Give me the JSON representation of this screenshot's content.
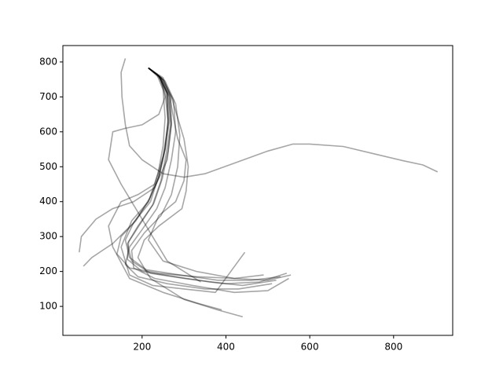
{
  "chart_data": {
    "type": "line",
    "xlim": [
      11,
      941
    ],
    "ylim": [
      17,
      847
    ],
    "xticks": [
      200,
      400,
      600,
      800
    ],
    "yticks": [
      100,
      200,
      300,
      400,
      500,
      600,
      700,
      800
    ],
    "grid": false,
    "alpha": 0.35,
    "series": [
      {
        "color": "#000000",
        "x": [
          215,
          245,
          265,
          268,
          258,
          245,
          225,
          190,
          165,
          175,
          220,
          300,
          400,
          480,
          545
        ],
        "values": [
          783,
          755,
          700,
          620,
          540,
          460,
          390,
          330,
          280,
          230,
          195,
          180,
          165,
          170,
          195
        ]
      },
      {
        "color": "#000000",
        "x": [
          215,
          240,
          255,
          262,
          255,
          240,
          215,
          180,
          160,
          170,
          210,
          290,
          380,
          460,
          530
        ],
        "values": [
          783,
          760,
          710,
          630,
          550,
          470,
          400,
          340,
          290,
          240,
          205,
          190,
          175,
          175,
          185
        ]
      },
      {
        "color": "#000000",
        "x": [
          215,
          250,
          275,
          280,
          270,
          255,
          235,
          200,
          170,
          160,
          190,
          260,
          350,
          430,
          510
        ],
        "values": [
          783,
          750,
          690,
          600,
          520,
          440,
          380,
          320,
          270,
          220,
          185,
          165,
          150,
          150,
          165
        ]
      },
      {
        "color": "#000000",
        "x": [
          215,
          235,
          250,
          255,
          250,
          238,
          218,
          185,
          150,
          140,
          170,
          240,
          330,
          420,
          490
        ],
        "values": [
          783,
          765,
          720,
          640,
          560,
          480,
          410,
          345,
          300,
          250,
          210,
          195,
          185,
          180,
          190
        ]
      },
      {
        "color": "#000000",
        "x": [
          215,
          255,
          280,
          290,
          285,
          270,
          245,
          205,
          175,
          180,
          230,
          320,
          420,
          500,
          550
        ],
        "values": [
          783,
          745,
          680,
          590,
          500,
          420,
          360,
          310,
          260,
          210,
          180,
          160,
          140,
          145,
          180
        ]
      },
      {
        "color": "#000000",
        "x": [
          215,
          242,
          262,
          270,
          262,
          248,
          228,
          195,
          168,
          165,
          200,
          280,
          360,
          440,
          520
        ],
        "values": [
          783,
          758,
          705,
          625,
          545,
          465,
          395,
          335,
          285,
          235,
          200,
          185,
          170,
          160,
          175
        ]
      },
      {
        "color": "#000000",
        "x": [
          215,
          248,
          270,
          285,
          300,
          310,
          305,
          295,
          240,
          205,
          190,
          220,
          300,
          380,
          440
        ],
        "values": [
          783,
          752,
          700,
          640,
          580,
          500,
          430,
          380,
          330,
          290,
          240,
          180,
          120,
          90,
          70
        ]
      },
      {
        "color": "#000000",
        "x": [
          215,
          240,
          260,
          262,
          250,
          230,
          190,
          150,
          120,
          130,
          170,
          250,
          330,
          390
        ],
        "values": [
          783,
          760,
          710,
          620,
          530,
          450,
          420,
          400,
          330,
          270,
          180,
          140,
          110,
          90
        ]
      },
      {
        "color": "#000000",
        "x": [
          215,
          245,
          255,
          240,
          200,
          160,
          130,
          120,
          150,
          200,
          260,
          340
        ],
        "values": [
          783,
          750,
          700,
          650,
          620,
          610,
          600,
          520,
          450,
          350,
          230,
          170
        ]
      },
      {
        "color": "#000000",
        "x": [
          215,
          250,
          268,
          270,
          260,
          230,
          180,
          130,
          90,
          55,
          50
        ],
        "values": [
          783,
          755,
          700,
          620,
          520,
          440,
          400,
          380,
          350,
          300,
          255
        ]
      },
      {
        "color": "#000000",
        "x": [
          160,
          150,
          152,
          160,
          170,
          200,
          250,
          300,
          350,
          420,
          500,
          560,
          600,
          680,
          760,
          820,
          870,
          905
        ],
        "values": [
          810,
          770,
          700,
          620,
          560,
          520,
          480,
          470,
          480,
          510,
          545,
          565,
          565,
          558,
          535,
          518,
          505,
          485
        ]
      },
      {
        "color": "#000000",
        "x": [
          215,
          245,
          265,
          275,
          285,
          305,
          300,
          280,
          240,
          215,
          250,
          330,
          420,
          500,
          555
        ],
        "values": [
          783,
          755,
          705,
          640,
          580,
          520,
          460,
          400,
          360,
          290,
          230,
          200,
          180,
          175,
          190
        ]
      },
      {
        "color": "#000000",
        "x": [
          215,
          240,
          258,
          262,
          255,
          240,
          220,
          180,
          130,
          80,
          60
        ],
        "values": [
          783,
          760,
          712,
          635,
          555,
          475,
          400,
          340,
          280,
          240,
          215
        ]
      },
      {
        "color": "#000000",
        "x": [
          215,
          240,
          260,
          265,
          255,
          240,
          215,
          175,
          150,
          170,
          225,
          300,
          375,
          445
        ],
        "values": [
          783,
          760,
          712,
          630,
          550,
          470,
          400,
          345,
          270,
          190,
          160,
          150,
          140,
          255
        ]
      }
    ]
  }
}
